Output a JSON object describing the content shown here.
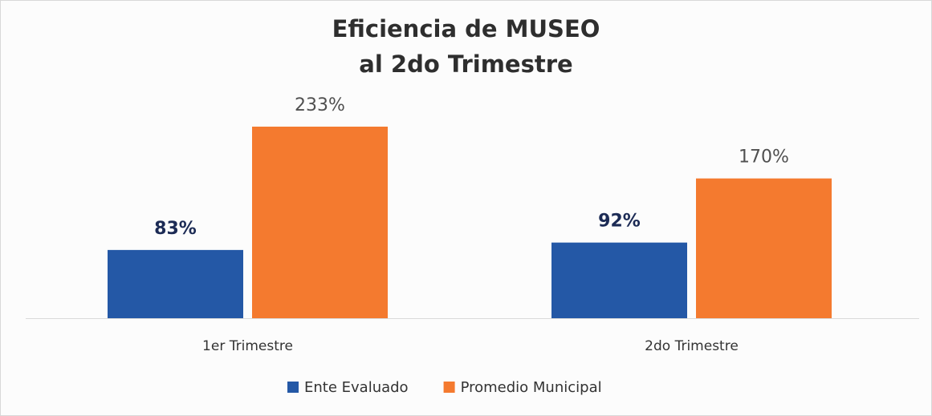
{
  "chart_data": {
    "type": "bar",
    "title": "Eficiencia  de MUSEO\nal 2do Trimestre",
    "categories": [
      "1er Trimestre",
      "2do Trimestre"
    ],
    "series": [
      {
        "name": "Ente Evaluado",
        "color": "#2458a6",
        "label_color": "#1c2b55",
        "values": [
          83,
          92
        ],
        "value_labels": [
          "83%",
          "92%"
        ]
      },
      {
        "name": "Promedio Municipal",
        "color": "#f47a2f",
        "label_color": "#505050",
        "values": [
          233,
          170
        ],
        "value_labels": [
          "233%",
          "170%"
        ]
      }
    ]
  }
}
